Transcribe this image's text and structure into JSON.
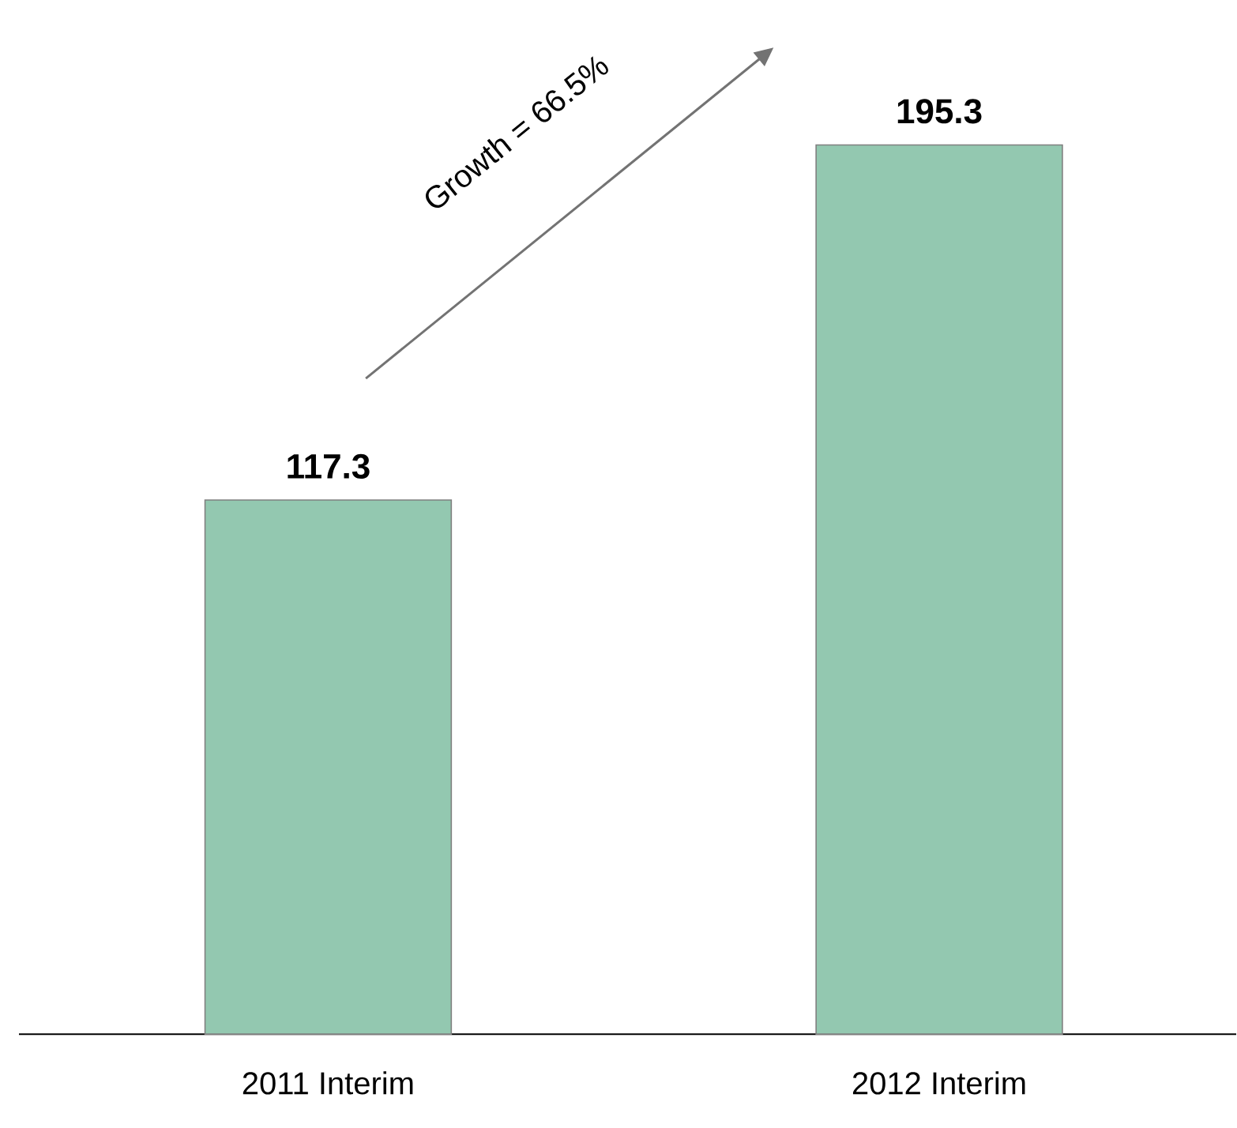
{
  "chart_data": {
    "type": "bar",
    "categories": [
      "2011 Interim",
      "2012 Interim"
    ],
    "values": [
      117.3,
      195.3
    ],
    "color": "#93c8b0",
    "data_labels": true,
    "annotations": [
      "Growth = 66.5%"
    ]
  }
}
